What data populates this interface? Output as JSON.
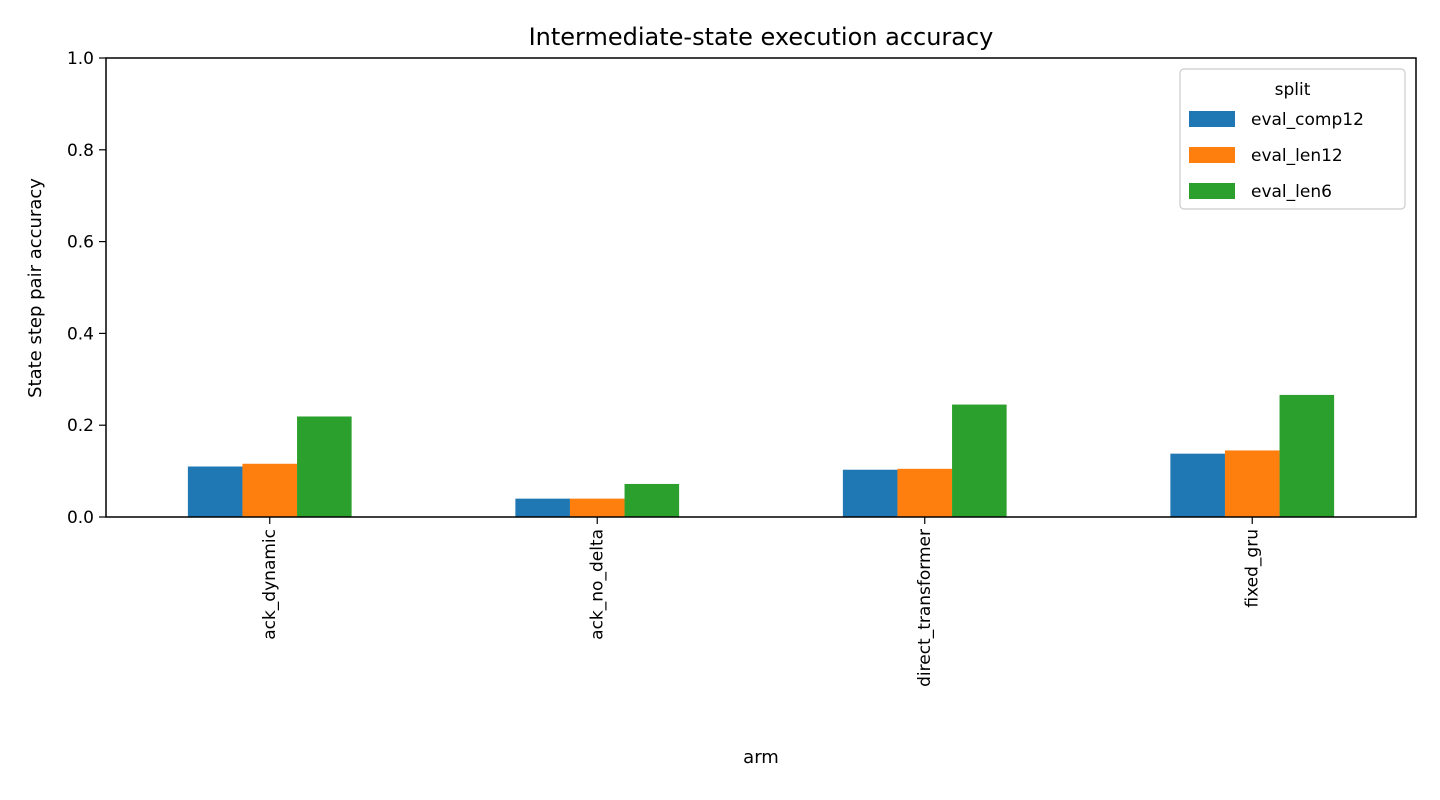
{
  "chart_data": {
    "type": "bar",
    "title": "Intermediate-state execution accuracy",
    "xlabel": "arm",
    "ylabel": "State step pair accuracy",
    "ylim": [
      0,
      1.0
    ],
    "yticks": [
      "0.0",
      "0.2",
      "0.4",
      "0.6",
      "0.8",
      "1.0"
    ],
    "categories": [
      "ack_dynamic",
      "ack_no_delta",
      "direct_transformer",
      "fixed_gru"
    ],
    "series": [
      {
        "name": "eval_comp12",
        "color": "#1f77b4",
        "values": [
          0.11,
          0.04,
          0.103,
          0.138
        ]
      },
      {
        "name": "eval_len12",
        "color": "#ff7f0e",
        "values": [
          0.116,
          0.04,
          0.105,
          0.145
        ]
      },
      {
        "name": "eval_len6",
        "color": "#2ca02c",
        "values": [
          0.219,
          0.072,
          0.245,
          0.266
        ]
      }
    ],
    "legend": {
      "title": "split",
      "placement": "top-right"
    },
    "grid": false
  }
}
